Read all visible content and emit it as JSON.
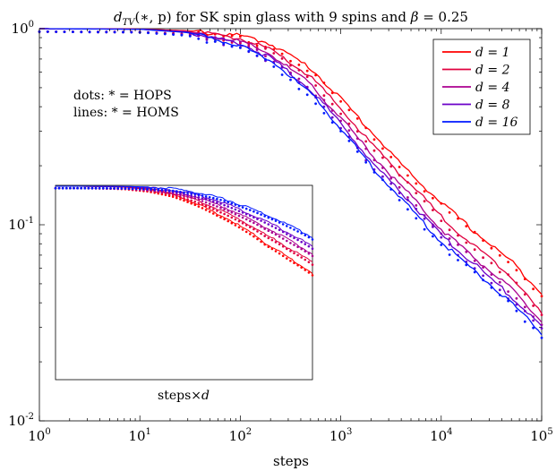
{
  "chart_data": {
    "type": "line",
    "title": "d_TV(∗, p) for SK spin glass with 9 spins and β = 0.25",
    "title_parts": {
      "d": "d",
      "sub": "TV",
      "args": "(∗, p)",
      "mid": " for SK spin glass with 9 spins and ",
      "beta": "β",
      "rest": " = 0.25"
    },
    "xlabel": "steps",
    "ylabel": "",
    "xscale": "log",
    "yscale": "log",
    "xlim": [
      1,
      100000
    ],
    "ylim": [
      0.01,
      1
    ],
    "x_ticks": [
      {
        "value": 1,
        "base": "10",
        "exp": "0"
      },
      {
        "value": 10,
        "base": "10",
        "exp": "1"
      },
      {
        "value": 100,
        "base": "10",
        "exp": "2"
      },
      {
        "value": 1000,
        "base": "10",
        "exp": "3"
      },
      {
        "value": 10000,
        "base": "10",
        "exp": "4"
      },
      {
        "value": 100000,
        "base": "10",
        "exp": "5"
      }
    ],
    "y_ticks": [
      {
        "value": 0.01,
        "base": "10",
        "exp": "-2"
      },
      {
        "value": 0.1,
        "base": "10",
        "exp": "-1"
      },
      {
        "value": 1,
        "base": "10",
        "exp": "0"
      }
    ],
    "grid": false,
    "legend_position": "top-right",
    "annotation": {
      "dots": "dots: * = HOPS",
      "lines": "lines: * = HOMS"
    },
    "series": [
      {
        "name": "d = 1",
        "color": "#ff0000",
        "points": [
          [
            1,
            1
          ],
          [
            10,
            0.995
          ],
          [
            30,
            0.975
          ],
          [
            100,
            0.92
          ],
          [
            200,
            0.84
          ],
          [
            500,
            0.63
          ],
          [
            1000,
            0.44
          ],
          [
            2000,
            0.3
          ],
          [
            5000,
            0.18
          ],
          [
            10000,
            0.13
          ],
          [
            20000,
            0.095
          ],
          [
            50000,
            0.065
          ],
          [
            100000,
            0.045
          ]
        ]
      },
      {
        "name": "d = 2",
        "color": "#e0003f",
        "points": [
          [
            1,
            1
          ],
          [
            10,
            0.995
          ],
          [
            30,
            0.97
          ],
          [
            100,
            0.89
          ],
          [
            200,
            0.78
          ],
          [
            500,
            0.57
          ],
          [
            1000,
            0.39
          ],
          [
            2000,
            0.26
          ],
          [
            5000,
            0.16
          ],
          [
            10000,
            0.11
          ],
          [
            20000,
            0.08
          ],
          [
            50000,
            0.055
          ],
          [
            100000,
            0.035
          ]
        ]
      },
      {
        "name": "d = 4",
        "color": "#ab0090",
        "points": [
          [
            1,
            1
          ],
          [
            10,
            0.994
          ],
          [
            30,
            0.965
          ],
          [
            100,
            0.86
          ],
          [
            200,
            0.74
          ],
          [
            500,
            0.52
          ],
          [
            1000,
            0.35
          ],
          [
            2000,
            0.23
          ],
          [
            5000,
            0.14
          ],
          [
            10000,
            0.095
          ],
          [
            20000,
            0.07
          ],
          [
            50000,
            0.047
          ],
          [
            100000,
            0.032
          ]
        ]
      },
      {
        "name": "d = 8",
        "color": "#6a00c8",
        "points": [
          [
            1,
            1
          ],
          [
            10,
            0.993
          ],
          [
            30,
            0.96
          ],
          [
            100,
            0.84
          ],
          [
            200,
            0.71
          ],
          [
            500,
            0.49
          ],
          [
            1000,
            0.33
          ],
          [
            2000,
            0.21
          ],
          [
            5000,
            0.13
          ],
          [
            10000,
            0.088
          ],
          [
            20000,
            0.065
          ],
          [
            50000,
            0.043
          ],
          [
            100000,
            0.03
          ]
        ]
      },
      {
        "name": "d = 16",
        "color": "#0018ff",
        "points": [
          [
            1,
            1
          ],
          [
            10,
            0.993
          ],
          [
            30,
            0.955
          ],
          [
            100,
            0.82
          ],
          [
            200,
            0.69
          ],
          [
            500,
            0.47
          ],
          [
            1000,
            0.31
          ],
          [
            2000,
            0.2
          ],
          [
            5000,
            0.12
          ],
          [
            10000,
            0.082
          ],
          [
            20000,
            0.06
          ],
          [
            50000,
            0.04
          ],
          [
            100000,
            0.028
          ]
        ]
      }
    ],
    "inset": {
      "xlabel": "steps×d",
      "xlabel_parts": {
        "text": "steps×",
        "var": "d"
      },
      "curves": [
        {
          "series": "d = 1",
          "color": "#ff0000",
          "yvalues": [
            1,
            1,
            0.995,
            0.98,
            0.93,
            0.84,
            0.7,
            0.55,
            0.42,
            0.3,
            0.22,
            0.16
          ]
        },
        {
          "series": "d = 2",
          "color": "#e0003f",
          "yvalues": [
            1,
            1,
            0.996,
            0.985,
            0.945,
            0.87,
            0.75,
            0.61,
            0.48,
            0.36,
            0.27,
            0.2
          ]
        },
        {
          "series": "d = 4",
          "color": "#ab0090",
          "yvalues": [
            1,
            1,
            0.997,
            0.99,
            0.96,
            0.9,
            0.8,
            0.67,
            0.54,
            0.42,
            0.32,
            0.24
          ]
        },
        {
          "series": "d = 8",
          "color": "#6a00c8",
          "yvalues": [
            1,
            1,
            0.998,
            0.993,
            0.972,
            0.925,
            0.84,
            0.73,
            0.6,
            0.48,
            0.37,
            0.28
          ]
        },
        {
          "series": "d = 16",
          "color": "#0018ff",
          "yvalues": [
            1,
            1,
            0.999,
            0.996,
            0.985,
            0.95,
            0.88,
            0.79,
            0.67,
            0.55,
            0.44,
            0.34
          ]
        }
      ]
    }
  }
}
